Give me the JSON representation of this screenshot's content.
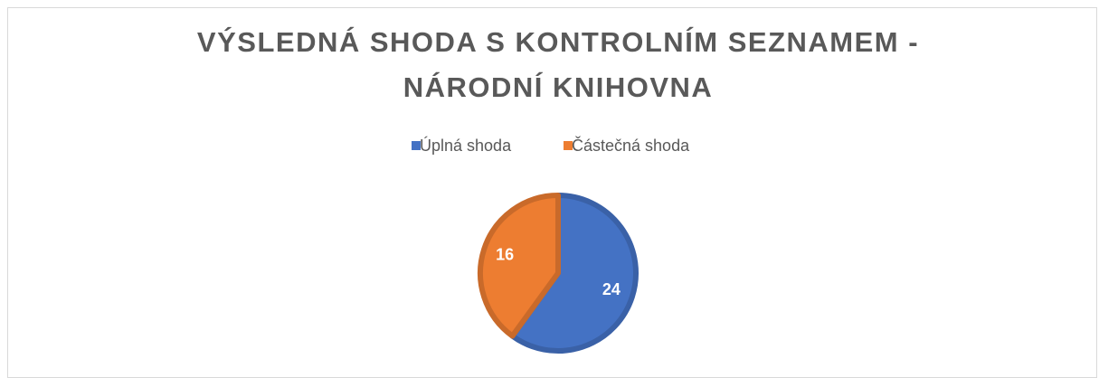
{
  "chart_data": {
    "type": "pie",
    "title": "VÝSLEDNÁ SHODA S KONTROLNÍM SEZNAMEM - NÁRODNÍ KNIHOVNA",
    "categories": [
      "Úplná shoda",
      "Částečná shoda"
    ],
    "values": [
      24,
      16
    ],
    "colors": [
      "#4472c4",
      "#ed7d31"
    ],
    "legend": "top"
  }
}
